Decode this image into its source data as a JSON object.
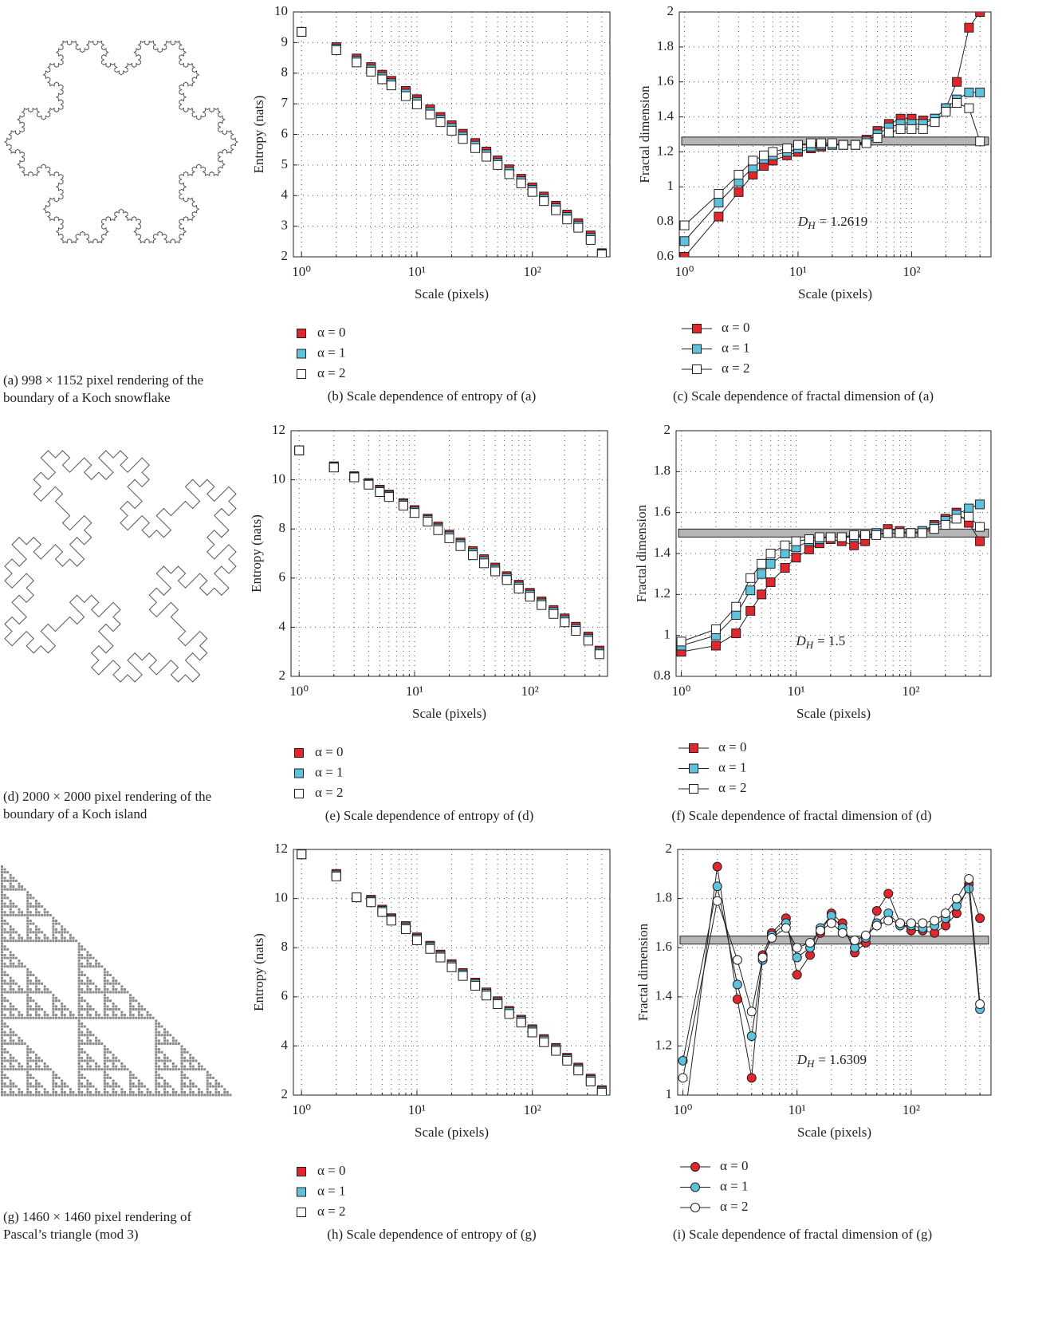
{
  "images": [
    {
      "caption": "(a) 998 × 1152 pixel rendering of the boundary of a Koch snowflake"
    },
    {
      "caption": "(d) 2000 × 2000 pixel rendering of the boundary of a Koch island"
    },
    {
      "caption": "(g) 1460 × 1460 pixel rendering of Pascal’s triangle (mod 3)"
    }
  ],
  "chart_data": [
    {
      "type": "scatter",
      "marker": "square",
      "caption": "(b) Scale dependence of entropy of (a)",
      "x_label": "Scale (pixels)",
      "y_label": "Entropy (nats)",
      "log_x": true,
      "grid": true,
      "xlim": [
        0.85,
        470
      ],
      "ylim": [
        2,
        10
      ],
      "xticks": [
        {
          "value": 1,
          "label": "10⁰"
        },
        {
          "value": 10,
          "label": "10¹"
        },
        {
          "value": 100,
          "label": "10²"
        }
      ],
      "xminor": [
        2,
        3,
        4,
        5,
        6,
        7,
        8,
        9,
        20,
        30,
        40,
        50,
        60,
        70,
        80,
        90,
        200,
        300,
        400
      ],
      "yticks": [
        2,
        3,
        4,
        5,
        6,
        7,
        8,
        9,
        10
      ],
      "x": [
        1,
        2,
        3,
        4,
        5,
        6,
        8,
        10,
        13,
        16,
        20,
        25,
        32,
        40,
        50,
        63,
        80,
        100,
        126,
        160,
        200,
        250,
        320,
        400
      ],
      "series": [
        {
          "name": "α = 0",
          "color": "#e2262e",
          "values": [
            9.35,
            8.85,
            8.48,
            8.2,
            7.95,
            7.75,
            7.42,
            7.15,
            6.82,
            6.57,
            6.3,
            6.02,
            5.72,
            5.44,
            5.15,
            4.86,
            4.55,
            4.27,
            3.97,
            3.67,
            3.38,
            3.1,
            2.7,
            2.12
          ]
        },
        {
          "name": "α = 1",
          "color": "#5fc2dd",
          "values": [
            9.35,
            8.8,
            8.41,
            8.12,
            7.87,
            7.67,
            7.33,
            7.06,
            6.73,
            6.48,
            6.21,
            5.93,
            5.63,
            5.35,
            5.07,
            4.78,
            4.47,
            4.19,
            3.89,
            3.59,
            3.3,
            3.02,
            2.62,
            2.1
          ]
        },
        {
          "name": "α = 2",
          "color": "#ffffff",
          "values": [
            9.35,
            8.75,
            8.35,
            8.05,
            7.8,
            7.6,
            7.25,
            6.98,
            6.65,
            6.4,
            6.12,
            5.85,
            5.55,
            5.27,
            5.0,
            4.7,
            4.4,
            4.12,
            3.82,
            3.52,
            3.22,
            2.95,
            2.55,
            2.08
          ]
        }
      ]
    },
    {
      "type": "line",
      "marker": "square",
      "caption": "(c) Scale dependence of fractal dimension of (a)",
      "x_label": "Scale (pixels)",
      "y_label": "Fractal dimension",
      "log_x": true,
      "grid": true,
      "xlim": [
        0.9,
        500
      ],
      "ylim": [
        0.6,
        2
      ],
      "xticks": [
        {
          "value": 1,
          "label": "10⁰"
        },
        {
          "value": 10,
          "label": "10¹"
        },
        {
          "value": 100,
          "label": "10²"
        }
      ],
      "xminor": [
        2,
        3,
        4,
        5,
        6,
        7,
        8,
        9,
        20,
        30,
        40,
        50,
        60,
        70,
        80,
        90,
        200,
        300,
        400
      ],
      "yticks": [
        0.6,
        0.8,
        1,
        1.2,
        1.4,
        1.6,
        1.8,
        2
      ],
      "hline": 1.2619,
      "hline_color": "#b5b5b5",
      "annotation": {
        "symbol": "D",
        "subscript": "H",
        "text": "= 1.2619"
      },
      "x": [
        1,
        2,
        3,
        4,
        5,
        6,
        8,
        10,
        13,
        16,
        20,
        25,
        32,
        40,
        50,
        63,
        80,
        100,
        126,
        160,
        200,
        250,
        320,
        400
      ],
      "series": [
        {
          "name": "α = 0",
          "color": "#e2262e",
          "values": [
            0.6,
            0.83,
            0.97,
            1.07,
            1.12,
            1.15,
            1.18,
            1.2,
            1.22,
            1.23,
            1.24,
            1.24,
            1.24,
            1.27,
            1.32,
            1.36,
            1.39,
            1.39,
            1.38,
            1.39,
            1.45,
            1.6,
            1.91,
            2.0
          ]
        },
        {
          "name": "α = 1",
          "color": "#5fc2dd",
          "values": [
            0.69,
            0.91,
            1.03,
            1.11,
            1.16,
            1.18,
            1.2,
            1.22,
            1.23,
            1.24,
            1.24,
            1.24,
            1.24,
            1.26,
            1.3,
            1.34,
            1.36,
            1.36,
            1.36,
            1.39,
            1.45,
            1.5,
            1.54,
            1.54
          ]
        },
        {
          "name": "α = 2",
          "color": "#ffffff",
          "values": [
            0.78,
            0.96,
            1.07,
            1.15,
            1.18,
            1.2,
            1.22,
            1.24,
            1.25,
            1.25,
            1.25,
            1.24,
            1.24,
            1.25,
            1.28,
            1.31,
            1.33,
            1.33,
            1.33,
            1.37,
            1.43,
            1.48,
            1.45,
            1.26
          ]
        }
      ]
    },
    {
      "type": "scatter",
      "marker": "square",
      "caption": "(e) Scale dependence of entropy of (d)",
      "x_label": "Scale (pixels)",
      "y_label": "Entropy (nats)",
      "log_x": true,
      "grid": true,
      "xlim": [
        0.85,
        470
      ],
      "ylim": [
        2,
        12
      ],
      "xticks": [
        {
          "value": 1,
          "label": "10⁰"
        },
        {
          "value": 10,
          "label": "10¹"
        },
        {
          "value": 100,
          "label": "10²"
        }
      ],
      "xminor": [
        2,
        3,
        4,
        5,
        6,
        7,
        8,
        9,
        20,
        30,
        40,
        50,
        60,
        70,
        80,
        90,
        200,
        300,
        400
      ],
      "yticks": [
        2,
        4,
        6,
        8,
        10,
        12
      ],
      "x": [
        1,
        2,
        3,
        4,
        5,
        6,
        8,
        10,
        13,
        16,
        20,
        25,
        32,
        40,
        50,
        63,
        80,
        100,
        126,
        160,
        200,
        250,
        320,
        400
      ],
      "series": [
        {
          "name": "α = 0",
          "color": "#e2262e",
          "values": [
            11.2,
            10.55,
            10.15,
            9.87,
            9.6,
            9.4,
            9.05,
            8.77,
            8.42,
            8.1,
            7.77,
            7.45,
            7.1,
            6.77,
            6.43,
            6.08,
            5.73,
            5.4,
            5.05,
            4.7,
            4.36,
            4.02,
            3.62,
            3.05
          ]
        },
        {
          "name": "α = 1",
          "color": "#5fc2dd",
          "values": [
            11.2,
            10.52,
            10.12,
            9.83,
            9.55,
            9.35,
            9.0,
            8.71,
            8.36,
            8.02,
            7.7,
            7.38,
            7.02,
            6.69,
            6.35,
            6.0,
            5.65,
            5.32,
            4.97,
            4.62,
            4.28,
            3.93,
            3.53,
            2.97
          ]
        },
        {
          "name": "α = 2",
          "color": "#ffffff",
          "values": [
            11.2,
            10.5,
            10.1,
            9.8,
            9.5,
            9.3,
            8.95,
            8.65,
            8.3,
            7.95,
            7.62,
            7.3,
            6.93,
            6.6,
            6.27,
            5.92,
            5.57,
            5.24,
            4.9,
            4.54,
            4.2,
            3.85,
            3.45,
            2.9
          ]
        }
      ]
    },
    {
      "type": "line",
      "marker": "square",
      "caption": "(f) Scale dependence of fractal dimension of (d)",
      "x_label": "Scale (pixels)",
      "y_label": "Fractal dimension",
      "log_x": true,
      "grid": true,
      "xlim": [
        0.9,
        500
      ],
      "ylim": [
        0.8,
        2
      ],
      "xticks": [
        {
          "value": 1,
          "label": "10⁰"
        },
        {
          "value": 10,
          "label": "10¹"
        },
        {
          "value": 100,
          "label": "10²"
        }
      ],
      "xminor": [
        2,
        3,
        4,
        5,
        6,
        7,
        8,
        9,
        20,
        30,
        40,
        50,
        60,
        70,
        80,
        90,
        200,
        300,
        400
      ],
      "yticks": [
        0.8,
        1,
        1.2,
        1.4,
        1.6,
        1.8,
        2
      ],
      "hline": 1.5,
      "hline_color": "#b5b5b5",
      "annotation": {
        "symbol": "D",
        "subscript": "H",
        "text": "= 1.5"
      },
      "x": [
        1,
        2,
        3,
        4,
        5,
        6,
        8,
        10,
        13,
        16,
        20,
        25,
        32,
        40,
        50,
        63,
        80,
        100,
        126,
        160,
        200,
        250,
        320,
        400
      ],
      "series": [
        {
          "name": "α = 0",
          "color": "#e2262e",
          "values": [
            0.92,
            0.95,
            1.01,
            1.12,
            1.2,
            1.26,
            1.33,
            1.38,
            1.42,
            1.45,
            1.47,
            1.46,
            1.44,
            1.46,
            1.5,
            1.52,
            1.51,
            1.5,
            1.51,
            1.54,
            1.57,
            1.6,
            1.55,
            1.46
          ]
        },
        {
          "name": "α = 1",
          "color": "#5fc2dd",
          "values": [
            0.95,
            1.0,
            1.1,
            1.22,
            1.3,
            1.35,
            1.4,
            1.43,
            1.46,
            1.47,
            1.48,
            1.48,
            1.48,
            1.49,
            1.5,
            1.5,
            1.5,
            1.5,
            1.51,
            1.53,
            1.56,
            1.59,
            1.62,
            1.64
          ]
        },
        {
          "name": "α = 2",
          "color": "#ffffff",
          "values": [
            0.97,
            1.03,
            1.14,
            1.28,
            1.35,
            1.4,
            1.44,
            1.46,
            1.47,
            1.48,
            1.48,
            1.48,
            1.49,
            1.49,
            1.49,
            1.5,
            1.5,
            1.5,
            1.5,
            1.52,
            1.54,
            1.57,
            1.58,
            1.53
          ]
        }
      ]
    },
    {
      "type": "scatter",
      "marker": "square",
      "caption": "(h) Scale dependence of entropy of (g)",
      "x_label": "Scale (pixels)",
      "y_label": "Entropy (nats)",
      "log_x": true,
      "grid": true,
      "xlim": [
        0.85,
        470
      ],
      "ylim": [
        2,
        12
      ],
      "xticks": [
        {
          "value": 1,
          "label": "10⁰"
        },
        {
          "value": 10,
          "label": "10¹"
        },
        {
          "value": 100,
          "label": "10²"
        }
      ],
      "xminor": [
        2,
        3,
        4,
        5,
        6,
        7,
        8,
        9,
        20,
        30,
        40,
        50,
        60,
        70,
        80,
        90,
        200,
        300,
        400
      ],
      "yticks": [
        2,
        4,
        6,
        8,
        10,
        12
      ],
      "x": [
        1,
        2,
        3,
        4,
        5,
        6,
        8,
        10,
        13,
        16,
        20,
        25,
        32,
        40,
        50,
        63,
        80,
        100,
        126,
        160,
        200,
        250,
        320,
        400
      ],
      "series": [
        {
          "name": "α = 0",
          "color": "#e2262e",
          "values": [
            11.8,
            11.0,
            10.05,
            9.95,
            9.55,
            9.2,
            8.88,
            8.42,
            8.08,
            7.72,
            7.33,
            6.97,
            6.58,
            6.18,
            5.82,
            5.43,
            5.07,
            4.68,
            4.28,
            3.92,
            3.52,
            3.12,
            2.67,
            2.2
          ]
        },
        {
          "name": "α = 1",
          "color": "#5fc2dd",
          "values": [
            11.8,
            10.95,
            10.05,
            9.9,
            9.5,
            9.15,
            8.82,
            8.36,
            8.02,
            7.66,
            7.27,
            6.91,
            6.52,
            6.12,
            5.76,
            5.37,
            5.01,
            4.62,
            4.22,
            3.86,
            3.46,
            3.06,
            2.61,
            2.15
          ]
        },
        {
          "name": "α = 2",
          "color": "#ffffff",
          "values": [
            11.8,
            10.9,
            10.05,
            9.85,
            9.45,
            9.1,
            8.75,
            8.3,
            7.95,
            7.6,
            7.2,
            6.85,
            6.45,
            6.05,
            5.7,
            5.3,
            4.95,
            4.55,
            4.15,
            3.8,
            3.4,
            3.0,
            2.55,
            2.1
          ]
        }
      ]
    },
    {
      "type": "line",
      "marker": "circle",
      "caption": "(i) Scale dependence of fractal dimension of (g)",
      "x_label": "Scale (pixels)",
      "y_label": "Fractal dimension",
      "log_x": true,
      "grid": true,
      "xlim": [
        0.9,
        500
      ],
      "ylim": [
        1,
        2
      ],
      "xticks": [
        {
          "value": 1,
          "label": "10⁰"
        },
        {
          "value": 10,
          "label": "10¹"
        },
        {
          "value": 100,
          "label": "10²"
        }
      ],
      "xminor": [
        2,
        3,
        4,
        5,
        6,
        7,
        8,
        9,
        20,
        30,
        40,
        50,
        60,
        70,
        80,
        90,
        200,
        300,
        400
      ],
      "yticks": [
        1,
        1.2,
        1.4,
        1.6,
        1.8,
        2
      ],
      "hline": 1.6309,
      "hline_color": "#b5b5b5",
      "annotation": {
        "symbol": "D",
        "subscript": "H",
        "text": "= 1.6309"
      },
      "x": [
        1,
        2,
        3,
        4,
        5,
        6,
        8,
        10,
        13,
        16,
        20,
        25,
        32,
        40,
        50,
        63,
        80,
        100,
        126,
        160,
        200,
        250,
        320,
        400
      ],
      "series": [
        {
          "name": "α = 0",
          "color": "#e2262e",
          "values": [
            0.85,
            1.93,
            1.39,
            1.07,
            1.57,
            1.66,
            1.72,
            1.49,
            1.57,
            1.66,
            1.74,
            1.7,
            1.58,
            1.62,
            1.75,
            1.82,
            1.7,
            1.67,
            1.67,
            1.66,
            1.69,
            1.74,
            1.86,
            1.72
          ]
        },
        {
          "name": "α = 1",
          "color": "#5fc2dd",
          "values": [
            1.14,
            1.85,
            1.45,
            1.24,
            1.55,
            1.65,
            1.7,
            1.56,
            1.6,
            1.68,
            1.73,
            1.68,
            1.6,
            1.64,
            1.7,
            1.74,
            1.69,
            1.69,
            1.68,
            1.69,
            1.72,
            1.77,
            1.84,
            1.35
          ]
        },
        {
          "name": "α = 2",
          "color": "#ffffff",
          "values": [
            1.07,
            1.79,
            1.55,
            1.34,
            1.56,
            1.64,
            1.68,
            1.6,
            1.62,
            1.67,
            1.7,
            1.66,
            1.63,
            1.65,
            1.69,
            1.71,
            1.7,
            1.7,
            1.7,
            1.71,
            1.74,
            1.8,
            1.88,
            1.37
          ]
        }
      ]
    }
  ]
}
